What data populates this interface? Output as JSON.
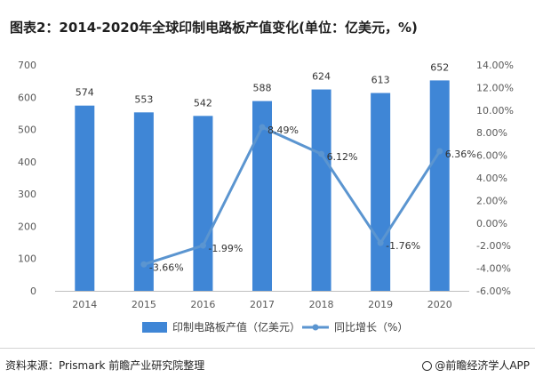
{
  "header": {
    "title": "图表2：2014-2020年全球印制电路板产值变化(单位：亿美元，%)"
  },
  "footer": {
    "source": "资料来源：Prismark 前瞻产业研究院整理",
    "brand": "@前瞻经济学人APP"
  },
  "colors": {
    "bar": "#3f86d6",
    "line": "#5b95d0",
    "grid": "#d9d9d9",
    "axis_text": "#595959"
  },
  "chart_data": {
    "type": "bar",
    "categories": [
      "2014",
      "2015",
      "2016",
      "2017",
      "2018",
      "2019",
      "2020"
    ],
    "series": [
      {
        "name": "印制电路板产值（亿美元）",
        "type": "bar",
        "axis": "left",
        "values": [
          574,
          553,
          542,
          588,
          624,
          613,
          652
        ],
        "labels": [
          "574",
          "553",
          "542",
          "588",
          "624",
          "613",
          "652"
        ]
      },
      {
        "name": "同比增长（%）",
        "type": "line",
        "axis": "right",
        "x": [
          "2015",
          "2016",
          "2017",
          "2018",
          "2019",
          "2020"
        ],
        "values": [
          -3.66,
          -1.99,
          8.49,
          6.12,
          -1.76,
          6.36
        ],
        "labels": [
          "-3.66%",
          "-1.99%",
          "8.49%",
          "6.12%",
          "-1.76%",
          "6.36%"
        ]
      }
    ],
    "y_left": {
      "min": 0,
      "max": 700,
      "ticks": [
        "0",
        "100",
        "200",
        "300",
        "400",
        "500",
        "600",
        "700"
      ]
    },
    "y_right": {
      "min": -6,
      "max": 14,
      "ticks": [
        "-6.00%",
        "-4.00%",
        "-2.00%",
        "0.00%",
        "2.00%",
        "4.00%",
        "6.00%",
        "8.00%",
        "10.00%",
        "12.00%",
        "14.00%"
      ]
    },
    "grid": false,
    "legend_position": "bottom"
  }
}
